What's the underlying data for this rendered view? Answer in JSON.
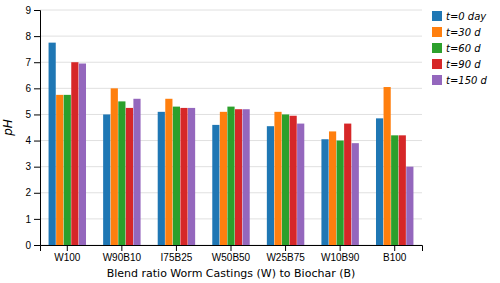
{
  "chart_data": {
    "type": "bar",
    "categories": [
      "W100",
      "W90B10",
      "I75B25",
      "W50B50",
      "W25B75",
      "W10B90",
      "B100"
    ],
    "series": [
      {
        "name": "t=0 day",
        "values": [
          7.75,
          5.0,
          5.1,
          4.6,
          4.55,
          4.05,
          4.85
        ]
      },
      {
        "name": "t=30 d",
        "values": [
          5.75,
          6.0,
          5.6,
          5.1,
          5.1,
          4.35,
          6.05
        ]
      },
      {
        "name": "t=60 d",
        "values": [
          5.75,
          5.5,
          5.3,
          5.3,
          5.0,
          4.0,
          4.2
        ]
      },
      {
        "name": "t=90 d",
        "values": [
          7.0,
          5.25,
          5.25,
          5.2,
          4.95,
          4.65,
          4.2
        ]
      },
      {
        "name": "t=150 d",
        "values": [
          6.95,
          5.6,
          5.25,
          5.2,
          4.65,
          3.9,
          3.0
        ]
      }
    ],
    "xlabel": "Blend ratio Worm Castings (W) to Biochar (B)",
    "ylabel": "pH",
    "ylim": [
      0,
      9
    ],
    "yticks": [
      0,
      1,
      2,
      3,
      4,
      5,
      6,
      7,
      8,
      9
    ],
    "grid": true,
    "legend": "upper right"
  }
}
